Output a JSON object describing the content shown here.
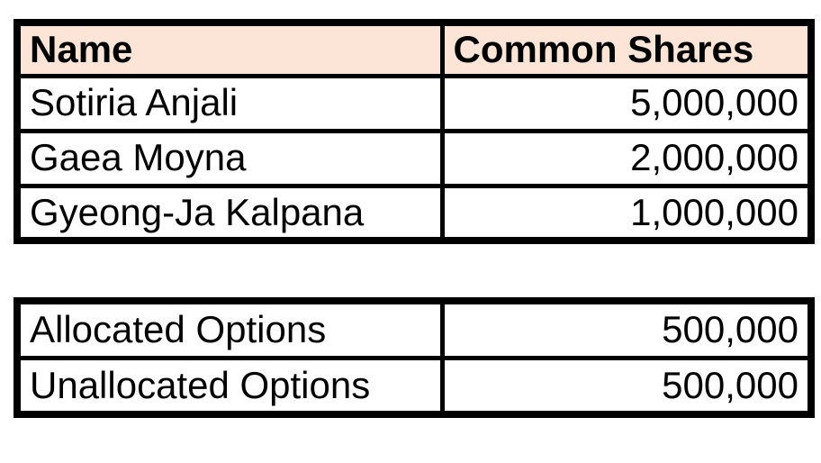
{
  "colors": {
    "header_fill": "#FCE4D6",
    "border": "#000000",
    "background": "#FFFFFF",
    "text": "#000000"
  },
  "cap_table": {
    "columns": [
      {
        "label": "Name"
      },
      {
        "label": "Common Shares"
      }
    ],
    "rows": [
      {
        "name": "Sotiria Anjali",
        "common_shares": "5,000,000"
      },
      {
        "name": "Gaea Moyna",
        "common_shares": "2,000,000"
      },
      {
        "name": "Gyeong-Ja Kalpana",
        "common_shares": "1,000,000"
      }
    ]
  },
  "options_table": {
    "rows": [
      {
        "label": "Allocated Options",
        "value": "500,000"
      },
      {
        "label": "Unallocated Options",
        "value": "500,000"
      }
    ]
  }
}
